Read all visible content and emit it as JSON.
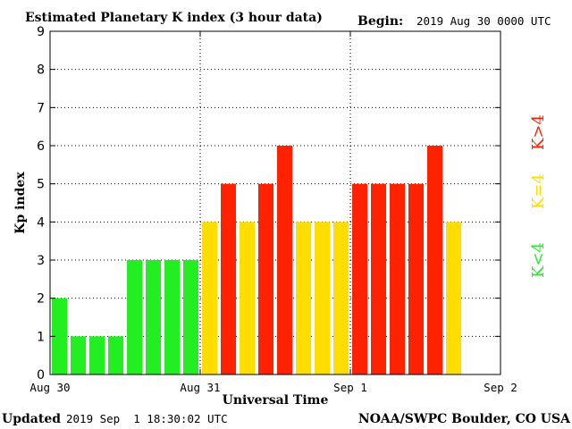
{
  "header": {
    "title": "Estimated Planetary K index (3 hour data)",
    "begin_label": "Begin:",
    "begin_value": "2019 Aug 30 0000 UTC"
  },
  "footer": {
    "updated_label": "Updated",
    "updated_value": "2019 Sep  1 18:30:02 UTC",
    "source": "NOAA/SWPC Boulder, CO USA"
  },
  "legend": {
    "below": "K<4",
    "equal": "K=4",
    "above": "K>4"
  },
  "colors": {
    "below": "#22ee22",
    "equal": "#ffdd00",
    "above": "#ff2200"
  },
  "chart_data": {
    "type": "bar",
    "title": "Estimated Planetary K index (3 hour data)",
    "xlabel": "Universal Time",
    "ylabel": "Kp index",
    "ylim": [
      0,
      9
    ],
    "yticks": [
      0,
      1,
      2,
      3,
      4,
      5,
      6,
      7,
      8,
      9
    ],
    "x_ticks": [
      "Aug 30",
      "Aug 31",
      "Sep 1",
      "Sep 2"
    ],
    "interval_hours": 3,
    "grid": "dotted",
    "values": [
      2,
      1,
      1,
      1,
      3,
      3,
      3,
      3,
      4,
      5,
      4,
      5,
      6,
      4,
      4,
      4,
      5,
      5,
      5,
      5,
      6,
      4
    ]
  }
}
